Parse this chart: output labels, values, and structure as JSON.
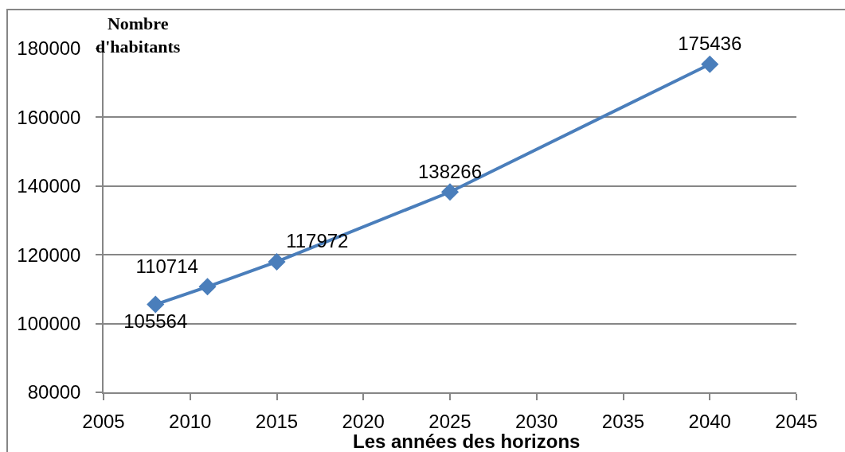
{
  "chart_data": {
    "type": "line",
    "xlabel": "Les années des horizons",
    "ylabel": "Nombre d'habitants",
    "x": [
      2008,
      2011,
      2015,
      2025,
      2040
    ],
    "series": [
      {
        "color": "#4a7ebb",
        "values": [
          105564,
          110714,
          117972,
          138266,
          175436
        ]
      }
    ],
    "xlim": [
      2005,
      2045
    ],
    "xticks": [
      2005,
      2010,
      2015,
      2020,
      2025,
      2030,
      2035,
      2040,
      2045
    ],
    "ylim": [
      80000,
      180000
    ],
    "yticks": [
      80000,
      100000,
      120000,
      140000,
      160000,
      180000
    ],
    "grid": "y",
    "marker": "diamond",
    "line_style": "solid",
    "data_labels": true
  }
}
